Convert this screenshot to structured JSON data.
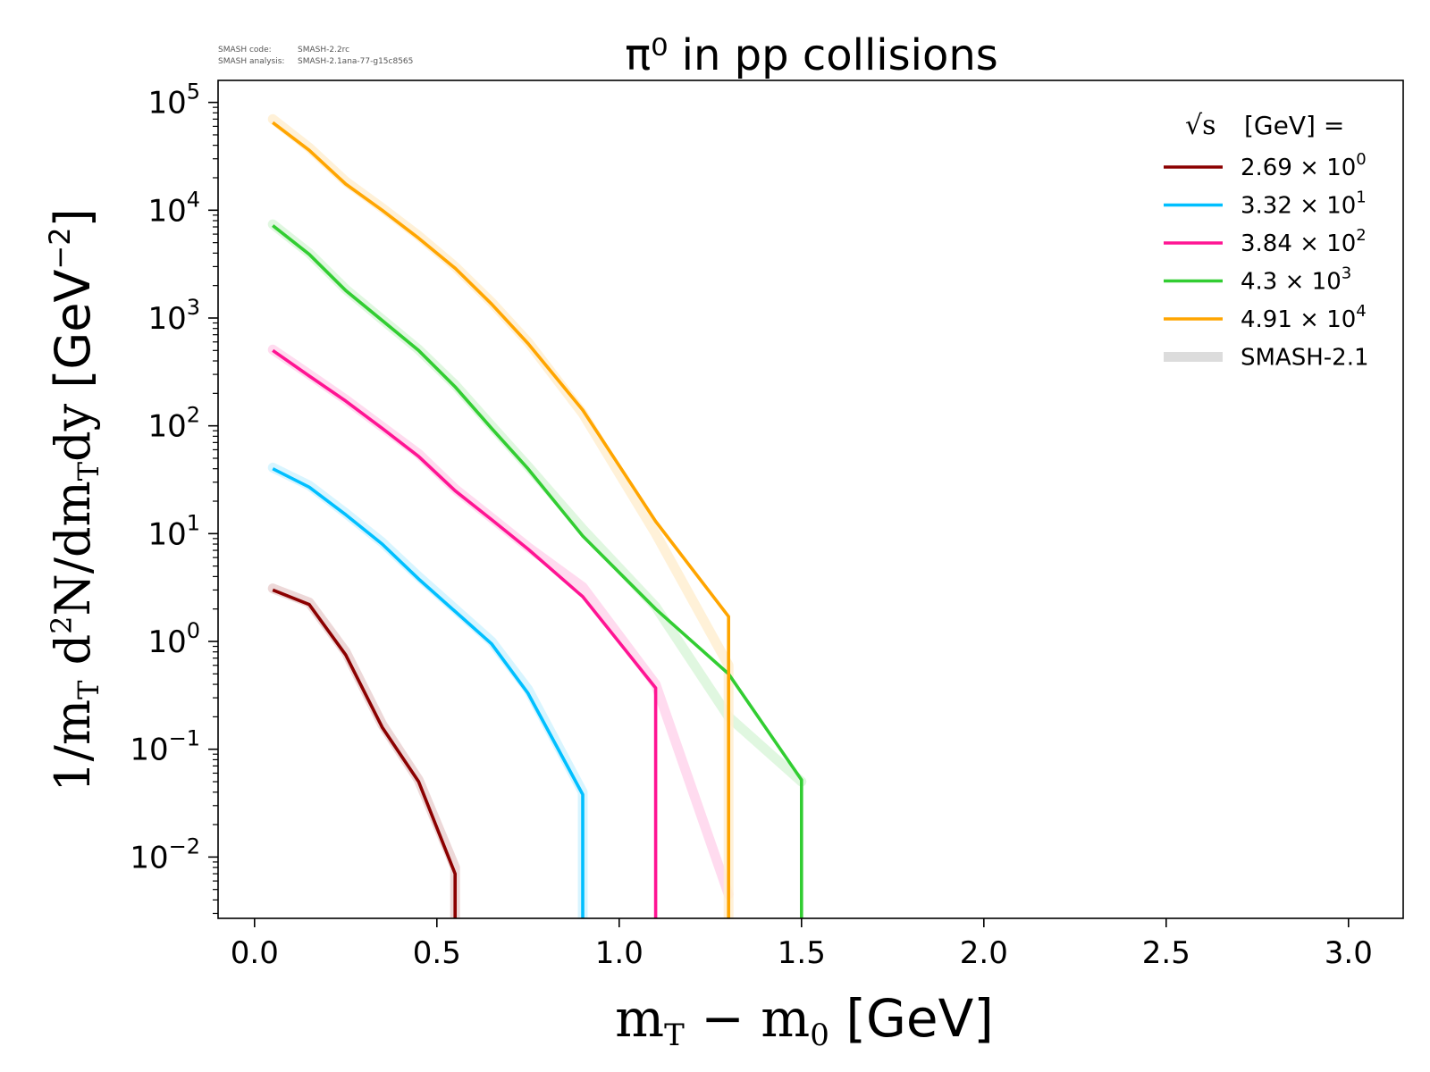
{
  "meta": {
    "code_label": "SMASH code:",
    "code_value": "SMASH-2.2rc",
    "analysis_label": "SMASH analysis:",
    "analysis_value": "SMASH-2.1ana-77-g15c8565"
  },
  "chart_data": {
    "type": "line",
    "title": "π⁰ in pp collisions",
    "xlabel": "m_T − m_0 [GeV]",
    "ylabel": "1/m_T d²N/dm_T dy [GeV⁻²]",
    "xlim": [
      -0.1,
      3.15
    ],
    "ylim": [
      0.0027,
      160000
    ],
    "yscale": "log",
    "xticks": [
      0.0,
      0.5,
      1.0,
      1.5,
      2.0,
      2.5,
      3.0
    ],
    "xtick_labels": [
      "0.0",
      "0.5",
      "1.0",
      "1.5",
      "2.0",
      "2.5",
      "3.0"
    ],
    "yticks": [
      {
        "value": 0.01,
        "base": "10",
        "exp": "−2"
      },
      {
        "value": 0.1,
        "base": "10",
        "exp": "−1"
      },
      {
        "value": 1,
        "base": "10",
        "exp": "0"
      },
      {
        "value": 10,
        "base": "10",
        "exp": "1"
      },
      {
        "value": 100,
        "base": "10",
        "exp": "2"
      },
      {
        "value": 1000,
        "base": "10",
        "exp": "3"
      },
      {
        "value": 10000,
        "base": "10",
        "exp": "4"
      },
      {
        "value": 100000,
        "base": "10",
        "exp": "5"
      }
    ],
    "grid": false,
    "legend": {
      "placement": "top-right",
      "title_prefix": "√s",
      "title_suffix": "[GeV] =",
      "reference_label": "SMASH-2.1",
      "reference_color": "#dcdcdc"
    },
    "series": [
      {
        "name_mantissa": "2.69",
        "name_exp": "0",
        "color": "#8b0000",
        "x": [
          0.05,
          0.15,
          0.25,
          0.35,
          0.45,
          0.55,
          0.55
        ],
        "y": [
          3.0,
          2.2,
          0.75,
          0.16,
          0.05,
          0.007,
          0.0027
        ],
        "ref_x": [
          0.05,
          0.15,
          0.25,
          0.35,
          0.45,
          0.55,
          0.55
        ],
        "ref_y": [
          3.1,
          2.3,
          0.8,
          0.17,
          0.052,
          0.008,
          0.0027
        ]
      },
      {
        "name_mantissa": "3.32",
        "name_exp": "1",
        "color": "#00bfff",
        "x": [
          0.05,
          0.15,
          0.25,
          0.35,
          0.45,
          0.55,
          0.65,
          0.75,
          0.9,
          0.9
        ],
        "y": [
          40,
          27,
          15,
          8,
          3.8,
          1.9,
          0.95,
          0.33,
          0.038,
          0.0027
        ],
        "ref_x": [
          0.05,
          0.15,
          0.25,
          0.35,
          0.45,
          0.55,
          0.65,
          0.75,
          0.9,
          0.9
        ],
        "ref_y": [
          41,
          28,
          15.5,
          8.3,
          4.0,
          2.0,
          1.0,
          0.36,
          0.04,
          0.0027
        ]
      },
      {
        "name_mantissa": "3.84",
        "name_exp": "2",
        "color": "#ff1493",
        "x": [
          0.05,
          0.15,
          0.25,
          0.35,
          0.45,
          0.55,
          0.65,
          0.75,
          0.9,
          1.1,
          1.1
        ],
        "y": [
          500,
          290,
          170,
          95,
          52,
          25,
          13.5,
          7.2,
          2.6,
          0.37,
          0.0027
        ],
        "ref_x": [
          0.05,
          0.15,
          0.25,
          0.35,
          0.45,
          0.55,
          0.65,
          0.75,
          0.9,
          1.1,
          1.3
        ],
        "ref_y": [
          510,
          300,
          175,
          98,
          55,
          26,
          14,
          7.5,
          3.2,
          0.4,
          0.0045
        ]
      },
      {
        "name_mantissa": "4.3",
        "name_exp": "3",
        "color": "#32cd32",
        "x": [
          0.05,
          0.15,
          0.25,
          0.35,
          0.45,
          0.55,
          0.65,
          0.75,
          0.9,
          1.1,
          1.3,
          1.5,
          1.5
        ],
        "y": [
          7200,
          3900,
          1800,
          950,
          500,
          230,
          95,
          40,
          9.5,
          2.0,
          0.5,
          0.052,
          0.0027
        ],
        "ref_x": [
          0.05,
          0.15,
          0.25,
          0.35,
          0.45,
          0.55,
          0.65,
          0.75,
          0.9,
          1.1,
          1.3,
          1.5
        ],
        "ref_y": [
          7400,
          4000,
          1850,
          970,
          510,
          240,
          100,
          42,
          11,
          2.1,
          0.2,
          0.05
        ]
      },
      {
        "name_mantissa": "4.91",
        "name_exp": "4",
        "color": "#ffa500",
        "x": [
          0.05,
          0.15,
          0.25,
          0.35,
          0.45,
          0.55,
          0.65,
          0.75,
          0.9,
          1.1,
          1.3,
          1.3
        ],
        "y": [
          65000,
          36000,
          17500,
          10000,
          5500,
          2900,
          1350,
          580,
          140,
          13,
          1.7,
          0.0027
        ],
        "ref_x": [
          0.05,
          0.15,
          0.25,
          0.35,
          0.45,
          0.55,
          0.65,
          0.75,
          0.9,
          1.1,
          1.3,
          1.3
        ],
        "ref_y": [
          70000,
          38000,
          18500,
          10500,
          5800,
          3000,
          1400,
          600,
          130,
          10,
          0.6,
          0.0027
        ]
      }
    ]
  }
}
